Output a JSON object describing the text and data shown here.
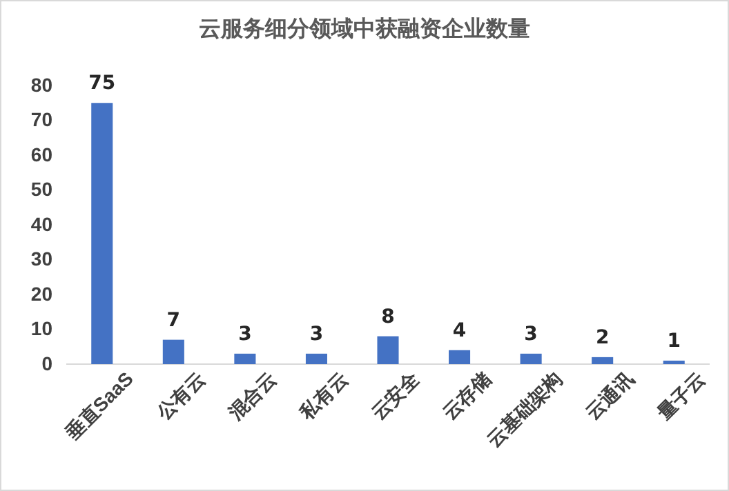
{
  "chart_data": {
    "type": "bar",
    "title": "云服务细分领域中获融资企业数量",
    "categories": [
      "垂直SaaS",
      "公有云",
      "混合云",
      "私有云",
      "云安全",
      "云存储",
      "云基础架构",
      "云通讯",
      "量子云"
    ],
    "values": [
      75,
      7,
      3,
      3,
      8,
      4,
      3,
      2,
      1
    ],
    "color": "#4472c4",
    "ylim": [
      0,
      80
    ],
    "yticks": [
      0,
      10,
      20,
      30,
      40,
      50,
      60,
      70,
      80
    ],
    "grid": false,
    "data_labels": true
  }
}
